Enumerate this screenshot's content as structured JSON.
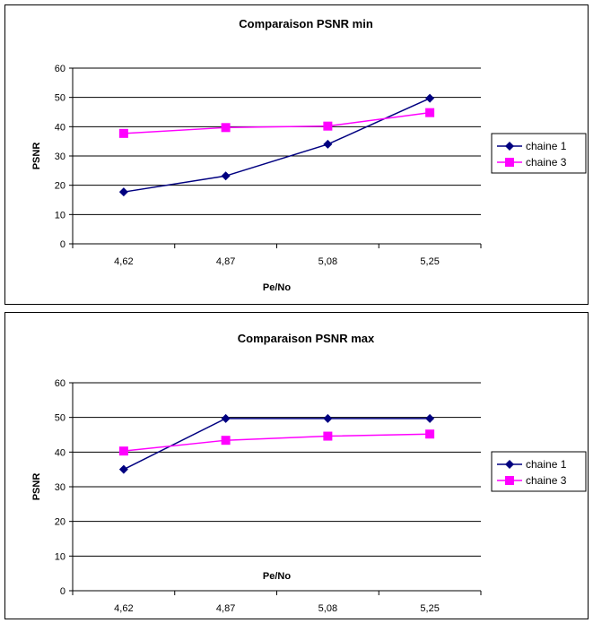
{
  "chart_data": [
    {
      "type": "line",
      "title": "Comparaison PSNR min",
      "xlabel": "Pe/No",
      "ylabel": "PSNR",
      "categories": [
        "4,62",
        "4,87",
        "5,08",
        "5,25"
      ],
      "ylim": [
        0,
        60
      ],
      "yticks": [
        "0",
        "10",
        "20",
        "30",
        "40",
        "50",
        "60"
      ],
      "grid": "horizontal",
      "legend_position": "right",
      "series": [
        {
          "name": "chaine 1",
          "values": [
            17.7,
            23.2,
            34.0,
            49.7
          ],
          "color": "#000080",
          "marker": "diamond"
        },
        {
          "name": "chaine 3",
          "values": [
            37.7,
            39.7,
            40.2,
            44.8
          ],
          "color": "#FF00FF",
          "marker": "square"
        }
      ]
    },
    {
      "type": "line",
      "title": "Comparaison PSNR max",
      "xlabel": "Pe/No",
      "ylabel": "PSNR",
      "categories": [
        "4,62",
        "4,87",
        "5,08",
        "5,25"
      ],
      "ylim": [
        0,
        60
      ],
      "yticks": [
        "0",
        "10",
        "20",
        "30",
        "40",
        "50",
        "60"
      ],
      "grid": "horizontal",
      "legend_position": "right",
      "series": [
        {
          "name": "chaine 1",
          "values": [
            35.0,
            49.7,
            49.7,
            49.7
          ],
          "color": "#000080",
          "marker": "diamond"
        },
        {
          "name": "chaine 3",
          "values": [
            40.3,
            43.4,
            44.6,
            45.2
          ],
          "color": "#FF00FF",
          "marker": "square"
        }
      ]
    }
  ]
}
